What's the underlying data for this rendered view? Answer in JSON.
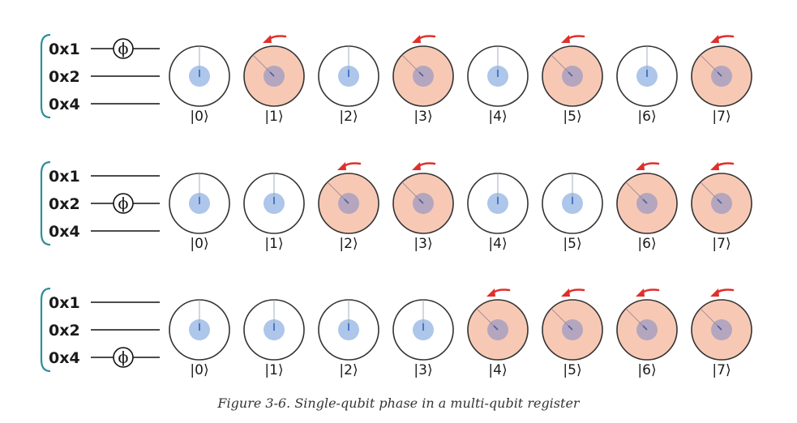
{
  "caption": "Figure 3-6. Single-qubit phase in a multi-qubit register",
  "phase_symbol": "ϕ",
  "colors": {
    "brace": "#2e8f9a",
    "wire": "#111111",
    "circle_stroke": "#333333",
    "rotated_fill": "#f7c9b5",
    "unrotated_fill": "#ffffff",
    "magnitude_dot": "#adc6e9",
    "magnitude_dot_rotated": "#b4a6be",
    "phase_needle": "#3d6fc4",
    "arrow": "#e0302b"
  },
  "rows": [
    {
      "labels": [
        "0x1",
        "0x2",
        "0x4"
      ],
      "phase_on": "0x1",
      "states": [
        {
          "ket": "|0⟩",
          "rotated": false
        },
        {
          "ket": "|1⟩",
          "rotated": true
        },
        {
          "ket": "|2⟩",
          "rotated": false
        },
        {
          "ket": "|3⟩",
          "rotated": true
        },
        {
          "ket": "|4⟩",
          "rotated": false
        },
        {
          "ket": "|5⟩",
          "rotated": true
        },
        {
          "ket": "|6⟩",
          "rotated": false
        },
        {
          "ket": "|7⟩",
          "rotated": true
        }
      ]
    },
    {
      "labels": [
        "0x1",
        "0x2",
        "0x4"
      ],
      "phase_on": "0x2",
      "states": [
        {
          "ket": "|0⟩",
          "rotated": false
        },
        {
          "ket": "|1⟩",
          "rotated": false
        },
        {
          "ket": "|2⟩",
          "rotated": true
        },
        {
          "ket": "|3⟩",
          "rotated": true
        },
        {
          "ket": "|4⟩",
          "rotated": false
        },
        {
          "ket": "|5⟩",
          "rotated": false
        },
        {
          "ket": "|6⟩",
          "rotated": true
        },
        {
          "ket": "|7⟩",
          "rotated": true
        }
      ]
    },
    {
      "labels": [
        "0x1",
        "0x2",
        "0x4"
      ],
      "phase_on": "0x4",
      "states": [
        {
          "ket": "|0⟩",
          "rotated": false
        },
        {
          "ket": "|1⟩",
          "rotated": false
        },
        {
          "ket": "|2⟩",
          "rotated": false
        },
        {
          "ket": "|3⟩",
          "rotated": false
        },
        {
          "ket": "|4⟩",
          "rotated": true
        },
        {
          "ket": "|5⟩",
          "rotated": true
        },
        {
          "ket": "|6⟩",
          "rotated": true
        },
        {
          "ket": "|7⟩",
          "rotated": true
        }
      ]
    }
  ]
}
